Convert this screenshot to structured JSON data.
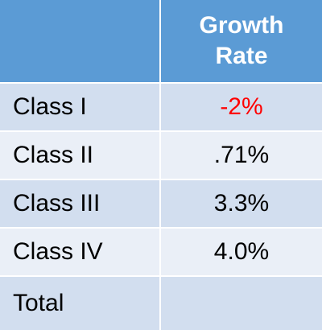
{
  "table": {
    "header": {
      "col1": "",
      "col2": "Growth Rate"
    },
    "rows": [
      {
        "label": "Class I",
        "value": "-2%",
        "value_color": "#ff0000"
      },
      {
        "label": "Class II",
        "value": ".71%"
      },
      {
        "label": "Class III",
        "value": "3.3%"
      },
      {
        "label": "Class IV",
        "value": "4.0%"
      },
      {
        "label": "Total",
        "value": ""
      }
    ]
  },
  "colors": {
    "header_bg": "#5b9bd5",
    "row_bg_dark": "#d2deef",
    "row_bg_light": "#eaeff7",
    "negative_text": "#ff0000"
  }
}
